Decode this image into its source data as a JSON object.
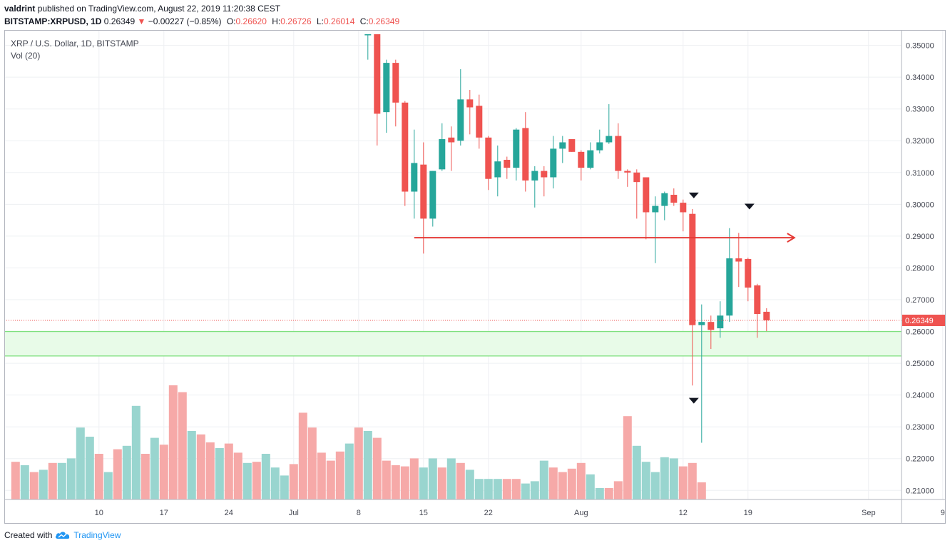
{
  "header": {
    "author": "valdrint",
    "published_text": "published on TradingView.com, August 22, 2019 11:20:38 CEST",
    "symbol": "BITSTAMP:XRPUSD, 1D",
    "last": "0.26349",
    "change_arrow": "▼",
    "change": "−0.00227 (−0.85%)",
    "open_label": "O:",
    "open": "0.26620",
    "high_label": "H:",
    "high": "0.26726",
    "low_label": "L:",
    "low": "0.26014",
    "close_label": "C:",
    "close": "0.26349"
  },
  "legend": {
    "title": "XRP / U.S. Dollar, 1D, BITSTAMP",
    "volume": "Vol (20)"
  },
  "footer": {
    "created_with": "Created with",
    "brand": "TradingView",
    "logo_icon": "tradingview-cloud-icon"
  },
  "colors": {
    "up": "#26a69a",
    "down": "#ef5350",
    "vol_up": "#99d5cf",
    "vol_down": "#f6a9a8",
    "grid": "#eef0f3",
    "support_zone": "#e8fbe8",
    "support_line": "#7ee07e",
    "arrow": "#e53935",
    "price_line": "#ef5350"
  },
  "chart_data": {
    "type": "candlestick",
    "y_range": [
      0.2067,
      0.3535
    ],
    "y_ticks": [
      "0.35000",
      "0.34000",
      "0.33000",
      "0.32000",
      "0.31000",
      "0.30000",
      "0.29000",
      "0.28000",
      "0.27000",
      "0.26000",
      "0.25000",
      "0.24000",
      "0.23000",
      "0.22000",
      "0.21000"
    ],
    "x_ticks": [
      {
        "label": "10",
        "day": 10
      },
      {
        "label": "17",
        "day": 17
      },
      {
        "label": "24",
        "day": 24
      },
      {
        "label": "Jul",
        "day": 31
      },
      {
        "label": "8",
        "day": 38
      },
      {
        "label": "15",
        "day": 45
      },
      {
        "label": "22",
        "day": 52
      },
      {
        "label": "Aug",
        "day": 62
      },
      {
        "label": "12",
        "day": 73
      },
      {
        "label": "19",
        "day": 80
      },
      {
        "label": "Sep",
        "day": 93
      },
      {
        "label": "9",
        "day": 101
      }
    ],
    "last_price": 0.26349,
    "last_price_label": "0.26349",
    "candles": [
      {
        "d": 39,
        "o": 0.3535,
        "h": 0.3535,
        "l": 0.3455,
        "c": 0.3535
      },
      {
        "d": 40,
        "o": 0.3535,
        "h": 0.3535,
        "l": 0.3185,
        "c": 0.3285
      },
      {
        "d": 41,
        "o": 0.329,
        "h": 0.3455,
        "l": 0.3225,
        "c": 0.3445
      },
      {
        "d": 42,
        "o": 0.3445,
        "h": 0.3455,
        "l": 0.3245,
        "c": 0.332
      },
      {
        "d": 43,
        "o": 0.332,
        "h": 0.3325,
        "l": 0.2995,
        "c": 0.304
      },
      {
        "d": 44,
        "o": 0.304,
        "h": 0.3235,
        "l": 0.2955,
        "c": 0.313
      },
      {
        "d": 45,
        "o": 0.3125,
        "h": 0.3195,
        "l": 0.2845,
        "c": 0.2955
      },
      {
        "d": 46,
        "o": 0.2955,
        "h": 0.3105,
        "l": 0.293,
        "c": 0.3105
      },
      {
        "d": 47,
        "o": 0.311,
        "h": 0.3255,
        "l": 0.3105,
        "c": 0.3205
      },
      {
        "d": 48,
        "o": 0.321,
        "h": 0.3245,
        "l": 0.3105,
        "c": 0.3195
      },
      {
        "d": 49,
        "o": 0.32,
        "h": 0.3425,
        "l": 0.3185,
        "c": 0.333
      },
      {
        "d": 50,
        "o": 0.333,
        "h": 0.336,
        "l": 0.322,
        "c": 0.3305
      },
      {
        "d": 51,
        "o": 0.331,
        "h": 0.3345,
        "l": 0.3175,
        "c": 0.321
      },
      {
        "d": 52,
        "o": 0.321,
        "h": 0.3215,
        "l": 0.3045,
        "c": 0.308
      },
      {
        "d": 53,
        "o": 0.3085,
        "h": 0.3185,
        "l": 0.3025,
        "c": 0.3135
      },
      {
        "d": 54,
        "o": 0.314,
        "h": 0.315,
        "l": 0.308,
        "c": 0.3115
      },
      {
        "d": 55,
        "o": 0.3115,
        "h": 0.324,
        "l": 0.3075,
        "c": 0.3235
      },
      {
        "d": 56,
        "o": 0.324,
        "h": 0.329,
        "l": 0.304,
        "c": 0.3075
      },
      {
        "d": 57,
        "o": 0.3075,
        "h": 0.312,
        "l": 0.299,
        "c": 0.3105
      },
      {
        "d": 58,
        "o": 0.3105,
        "h": 0.312,
        "l": 0.3025,
        "c": 0.3085
      },
      {
        "d": 59,
        "o": 0.3085,
        "h": 0.3215,
        "l": 0.305,
        "c": 0.3175
      },
      {
        "d": 60,
        "o": 0.3175,
        "h": 0.3215,
        "l": 0.313,
        "c": 0.3195
      },
      {
        "d": 61,
        "o": 0.3205,
        "h": 0.3205,
        "l": 0.3165,
        "c": 0.3165
      },
      {
        "d": 62,
        "o": 0.3165,
        "h": 0.317,
        "l": 0.3075,
        "c": 0.3115
      },
      {
        "d": 63,
        "o": 0.3115,
        "h": 0.3195,
        "l": 0.311,
        "c": 0.317
      },
      {
        "d": 64,
        "o": 0.317,
        "h": 0.3235,
        "l": 0.316,
        "c": 0.3195
      },
      {
        "d": 65,
        "o": 0.3195,
        "h": 0.3315,
        "l": 0.319,
        "c": 0.3215
      },
      {
        "d": 66,
        "o": 0.3215,
        "h": 0.3255,
        "l": 0.308,
        "c": 0.3105
      },
      {
        "d": 67,
        "o": 0.3105,
        "h": 0.311,
        "l": 0.3055,
        "c": 0.31
      },
      {
        "d": 68,
        "o": 0.31,
        "h": 0.311,
        "l": 0.2955,
        "c": 0.307
      },
      {
        "d": 69,
        "o": 0.3085,
        "h": 0.3085,
        "l": 0.289,
        "c": 0.2975
      },
      {
        "d": 70,
        "o": 0.2975,
        "h": 0.3025,
        "l": 0.2815,
        "c": 0.2995
      },
      {
        "d": 71,
        "o": 0.2995,
        "h": 0.304,
        "l": 0.295,
        "c": 0.3035
      },
      {
        "d": 72,
        "o": 0.303,
        "h": 0.305,
        "l": 0.2995,
        "c": 0.3005
      },
      {
        "d": 73,
        "o": 0.3005,
        "h": 0.3015,
        "l": 0.2915,
        "c": 0.2975
      },
      {
        "d": 74,
        "o": 0.297,
        "h": 0.2985,
        "l": 0.243,
        "c": 0.262
      },
      {
        "d": 75,
        "o": 0.262,
        "h": 0.2685,
        "l": 0.225,
        "c": 0.263
      },
      {
        "d": 76,
        "o": 0.263,
        "h": 0.265,
        "l": 0.2545,
        "c": 0.2605
      },
      {
        "d": 77,
        "o": 0.261,
        "h": 0.2695,
        "l": 0.258,
        "c": 0.265
      },
      {
        "d": 78,
        "o": 0.265,
        "h": 0.2925,
        "l": 0.263,
        "c": 0.283
      },
      {
        "d": 79,
        "o": 0.283,
        "h": 0.291,
        "l": 0.274,
        "c": 0.282
      },
      {
        "d": 80,
        "o": 0.2828,
        "h": 0.2832,
        "l": 0.2695,
        "c": 0.2738
      },
      {
        "d": 81,
        "o": 0.2745,
        "h": 0.275,
        "l": 0.258,
        "c": 0.2655
      },
      {
        "d": 82,
        "o": 0.2662,
        "h": 0.2673,
        "l": 0.2601,
        "c": 0.2635
      }
    ],
    "volume": [
      {
        "d": 1,
        "v": 0.33,
        "up": false
      },
      {
        "d": 2,
        "v": 0.3,
        "up": true
      },
      {
        "d": 3,
        "v": 0.24,
        "up": false
      },
      {
        "d": 4,
        "v": 0.26,
        "up": true
      },
      {
        "d": 5,
        "v": 0.32,
        "up": false
      },
      {
        "d": 6,
        "v": 0.32,
        "up": true
      },
      {
        "d": 7,
        "v": 0.36,
        "up": true
      },
      {
        "d": 8,
        "v": 0.63,
        "up": true
      },
      {
        "d": 9,
        "v": 0.55,
        "up": true
      },
      {
        "d": 10,
        "v": 0.4,
        "up": false
      },
      {
        "d": 11,
        "v": 0.24,
        "up": true
      },
      {
        "d": 12,
        "v": 0.44,
        "up": false
      },
      {
        "d": 13,
        "v": 0.47,
        "up": true
      },
      {
        "d": 14,
        "v": 0.82,
        "up": true
      },
      {
        "d": 15,
        "v": 0.4,
        "up": false
      },
      {
        "d": 16,
        "v": 0.54,
        "up": true
      },
      {
        "d": 17,
        "v": 0.48,
        "up": false
      },
      {
        "d": 18,
        "v": 1.0,
        "up": false
      },
      {
        "d": 19,
        "v": 0.94,
        "up": false
      },
      {
        "d": 20,
        "v": 0.6,
        "up": true
      },
      {
        "d": 21,
        "v": 0.57,
        "up": false
      },
      {
        "d": 22,
        "v": 0.5,
        "up": false
      },
      {
        "d": 23,
        "v": 0.45,
        "up": true
      },
      {
        "d": 24,
        "v": 0.49,
        "up": false
      },
      {
        "d": 25,
        "v": 0.41,
        "up": false
      },
      {
        "d": 26,
        "v": 0.32,
        "up": true
      },
      {
        "d": 27,
        "v": 0.33,
        "up": false
      },
      {
        "d": 28,
        "v": 0.4,
        "up": true
      },
      {
        "d": 29,
        "v": 0.28,
        "up": true
      },
      {
        "d": 30,
        "v": 0.21,
        "up": true
      },
      {
        "d": 31,
        "v": 0.31,
        "up": false
      },
      {
        "d": 32,
        "v": 0.76,
        "up": false
      },
      {
        "d": 33,
        "v": 0.63,
        "up": false
      },
      {
        "d": 34,
        "v": 0.41,
        "up": false
      },
      {
        "d": 35,
        "v": 0.34,
        "up": false
      },
      {
        "d": 36,
        "v": 0.42,
        "up": false
      },
      {
        "d": 37,
        "v": 0.49,
        "up": true
      },
      {
        "d": 38,
        "v": 0.63,
        "up": false
      },
      {
        "d": 39,
        "v": 0.6,
        "up": true
      },
      {
        "d": 40,
        "v": 0.54,
        "up": false
      },
      {
        "d": 41,
        "v": 0.34,
        "up": false
      },
      {
        "d": 42,
        "v": 0.3,
        "up": false
      },
      {
        "d": 43,
        "v": 0.29,
        "up": false
      },
      {
        "d": 44,
        "v": 0.36,
        "up": false
      },
      {
        "d": 45,
        "v": 0.28,
        "up": true
      },
      {
        "d": 46,
        "v": 0.36,
        "up": true
      },
      {
        "d": 47,
        "v": 0.28,
        "up": false
      },
      {
        "d": 48,
        "v": 0.36,
        "up": true
      },
      {
        "d": 49,
        "v": 0.32,
        "up": false
      },
      {
        "d": 50,
        "v": 0.26,
        "up": true
      },
      {
        "d": 51,
        "v": 0.18,
        "up": true
      },
      {
        "d": 52,
        "v": 0.18,
        "up": true
      },
      {
        "d": 53,
        "v": 0.18,
        "up": true
      },
      {
        "d": 54,
        "v": 0.18,
        "up": false
      },
      {
        "d": 55,
        "v": 0.18,
        "up": false
      },
      {
        "d": 56,
        "v": 0.14,
        "up": true
      },
      {
        "d": 57,
        "v": 0.16,
        "up": true
      },
      {
        "d": 58,
        "v": 0.34,
        "up": true
      },
      {
        "d": 59,
        "v": 0.28,
        "up": false
      },
      {
        "d": 60,
        "v": 0.24,
        "up": false
      },
      {
        "d": 61,
        "v": 0.27,
        "up": false
      },
      {
        "d": 62,
        "v": 0.32,
        "up": false
      },
      {
        "d": 63,
        "v": 0.22,
        "up": true
      },
      {
        "d": 64,
        "v": 0.1,
        "up": true
      },
      {
        "d": 65,
        "v": 0.1,
        "up": false
      },
      {
        "d": 66,
        "v": 0.16,
        "up": false
      },
      {
        "d": 67,
        "v": 0.73,
        "up": false
      },
      {
        "d": 68,
        "v": 0.47,
        "up": true
      },
      {
        "d": 69,
        "v": 0.33,
        "up": true
      },
      {
        "d": 70,
        "v": 0.24,
        "up": true
      },
      {
        "d": 71,
        "v": 0.37,
        "up": true
      },
      {
        "d": 72,
        "v": 0.36,
        "up": true
      },
      {
        "d": 73,
        "v": 0.29,
        "up": false
      },
      {
        "d": 74,
        "v": 0.32,
        "up": false
      },
      {
        "d": 75,
        "v": 0.15,
        "up": false
      }
    ],
    "annotations": {
      "resistance": {
        "price": 0.2895,
        "from_day": 44,
        "to_day": 85
      },
      "support_zone": {
        "from": 0.2523,
        "to": 0.26
      },
      "markers": [
        {
          "day": 74,
          "price": 0.3028
        },
        {
          "day": 80,
          "price": 0.2993
        },
        {
          "day": 74,
          "price": 0.2382
        }
      ]
    }
  }
}
